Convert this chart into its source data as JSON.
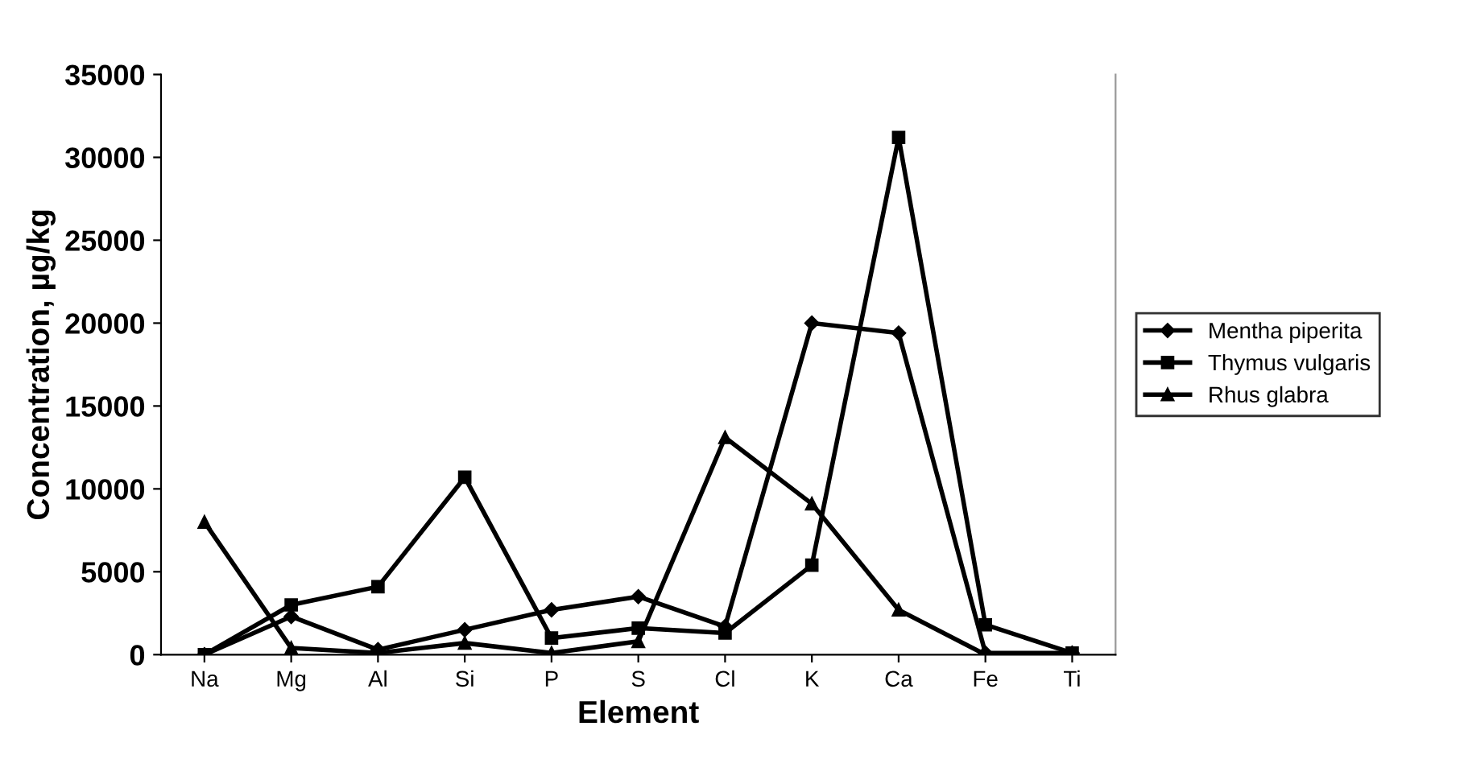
{
  "chart_data": {
    "type": "line",
    "xlabel": "Element",
    "ylabel": "Concentration, µg/kg",
    "categories": [
      "Na",
      "Mg",
      "Al",
      "Si",
      "P",
      "S",
      "Cl",
      "K",
      "Ca",
      "Fe",
      "Ti"
    ],
    "series": [
      {
        "name": "Mentha piperita",
        "color": "#000000",
        "marker": "diamond",
        "values": [
          0,
          2300,
          300,
          1500,
          2700,
          3500,
          1700,
          20000,
          19400,
          100,
          100
        ]
      },
      {
        "name": "Thymus vulgaris",
        "color": "#000000",
        "marker": "square",
        "values": [
          0,
          3000,
          4100,
          10700,
          1000,
          1600,
          1300,
          5400,
          31200,
          1800,
          100
        ]
      },
      {
        "name": "Rhus glabra",
        "color": "#000000",
        "marker": "triangle",
        "values": [
          8000,
          400,
          100,
          700,
          100,
          800,
          13100,
          9100,
          2700,
          0,
          0
        ]
      }
    ],
    "ylim": [
      0,
      35000
    ],
    "yticks": [
      0,
      5000,
      10000,
      15000,
      20000,
      25000,
      30000,
      35000
    ],
    "grid": false,
    "legend": "right"
  }
}
